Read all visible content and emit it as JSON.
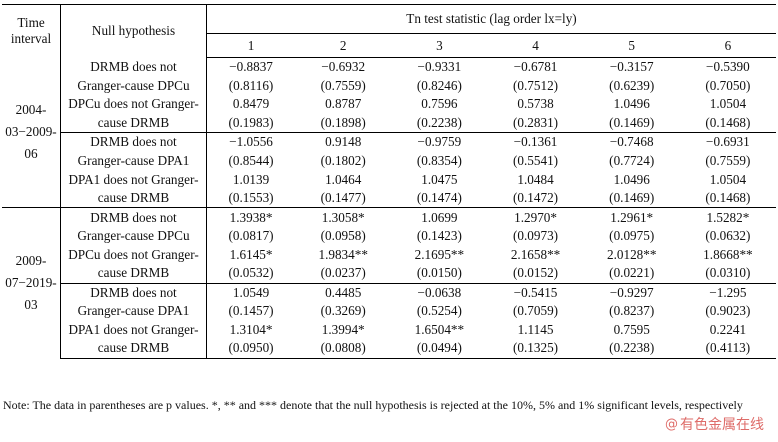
{
  "header": {
    "interval": "Time interval",
    "hypothesis": "Null hypothesis",
    "statistic": "Tn test statistic (lag order lx=ly)",
    "lags": [
      "1",
      "2",
      "3",
      "4",
      "5",
      "6"
    ]
  },
  "periods": [
    "2004-03−2009-06",
    "2009-07−2019-03"
  ],
  "rows": [
    {
      "h": "DRMB does not",
      "v": [
        "−0.8837",
        "−0.6932",
        "−0.9331",
        "−0.6781",
        "−0.3157",
        "−0.5390"
      ]
    },
    {
      "h": "Granger-cause DPCu",
      "v": [
        "(0.8116)",
        "(0.7559)",
        "(0.8246)",
        "(0.7512)",
        "(0.6239)",
        "(0.7050)"
      ]
    },
    {
      "h": "DPCu does not Granger-",
      "v": [
        "0.8479",
        "0.8787",
        "0.7596",
        "0.5738",
        "1.0496",
        "1.0504"
      ]
    },
    {
      "h": "cause DRMB",
      "v": [
        "(0.1983)",
        "(0.1898)",
        "(0.2238)",
        "(0.2831)",
        "(0.1469)",
        "(0.1468)"
      ]
    },
    {
      "h": "DRMB does not",
      "v": [
        "−1.0556",
        "0.9148",
        "−0.9759",
        "−0.1361",
        "−0.7468",
        "−0.6931"
      ]
    },
    {
      "h": "Granger-cause DPA1",
      "v": [
        "(0.8544)",
        "(0.1802)",
        "(0.8354)",
        "(0.5541)",
        "(0.7724)",
        "(0.7559)"
      ]
    },
    {
      "h": "DPA1 does not Granger-",
      "v": [
        "1.0139",
        "1.0464",
        "1.0475",
        "1.0484",
        "1.0496",
        "1.0504"
      ]
    },
    {
      "h": "cause DRMB",
      "v": [
        "(0.1553)",
        "(0.1477)",
        "(0.1474)",
        "(0.1472)",
        "(0.1469)",
        "(0.1468)"
      ]
    },
    {
      "h": "DRMB does not",
      "v": [
        "1.3938*",
        "1.3058*",
        "1.0699",
        "1.2970*",
        "1.2961*",
        "1.5282*"
      ]
    },
    {
      "h": "Granger-cause DPCu",
      "v": [
        "(0.0817)",
        "(0.0958)",
        "(0.1423)",
        "(0.0973)",
        "(0.0975)",
        "(0.0632)"
      ]
    },
    {
      "h": "DPCu does not Granger-",
      "v": [
        "1.6145*",
        "1.9834**",
        "2.1695**",
        "2.1658**",
        "2.0128**",
        "1.8668**"
      ]
    },
    {
      "h": "cause DRMB",
      "v": [
        "(0.0532)",
        "(0.0237)",
        "(0.0150)",
        "(0.0152)",
        "(0.0221)",
        "(0.0310)"
      ]
    },
    {
      "h": "DRMB does not",
      "v": [
        "1.0549",
        "0.4485",
        "−0.0638",
        "−0.5415",
        "−0.9297",
        "−1.295"
      ]
    },
    {
      "h": "Granger-cause DPA1",
      "v": [
        "(0.1457)",
        "(0.3269)",
        "(0.5254)",
        "(0.7059)",
        "(0.8237)",
        "(0.9023)"
      ]
    },
    {
      "h": "DPA1 does not Granger-",
      "v": [
        "1.3104*",
        "1.3994*",
        "1.6504**",
        "1.1145",
        "0.7595",
        "0.2241"
      ]
    },
    {
      "h": "cause DRMB",
      "v": [
        "(0.0950)",
        "(0.0808)",
        "(0.0494)",
        "(0.1325)",
        "(0.2238)",
        "(0.4113)"
      ]
    }
  ],
  "note": "Note: The data in parentheses are p values. *, ** and *** denote that the null hypothesis is rejected at the 10%, 5% and 1% significant levels, respectively",
  "watermark": "有色金属在线"
}
